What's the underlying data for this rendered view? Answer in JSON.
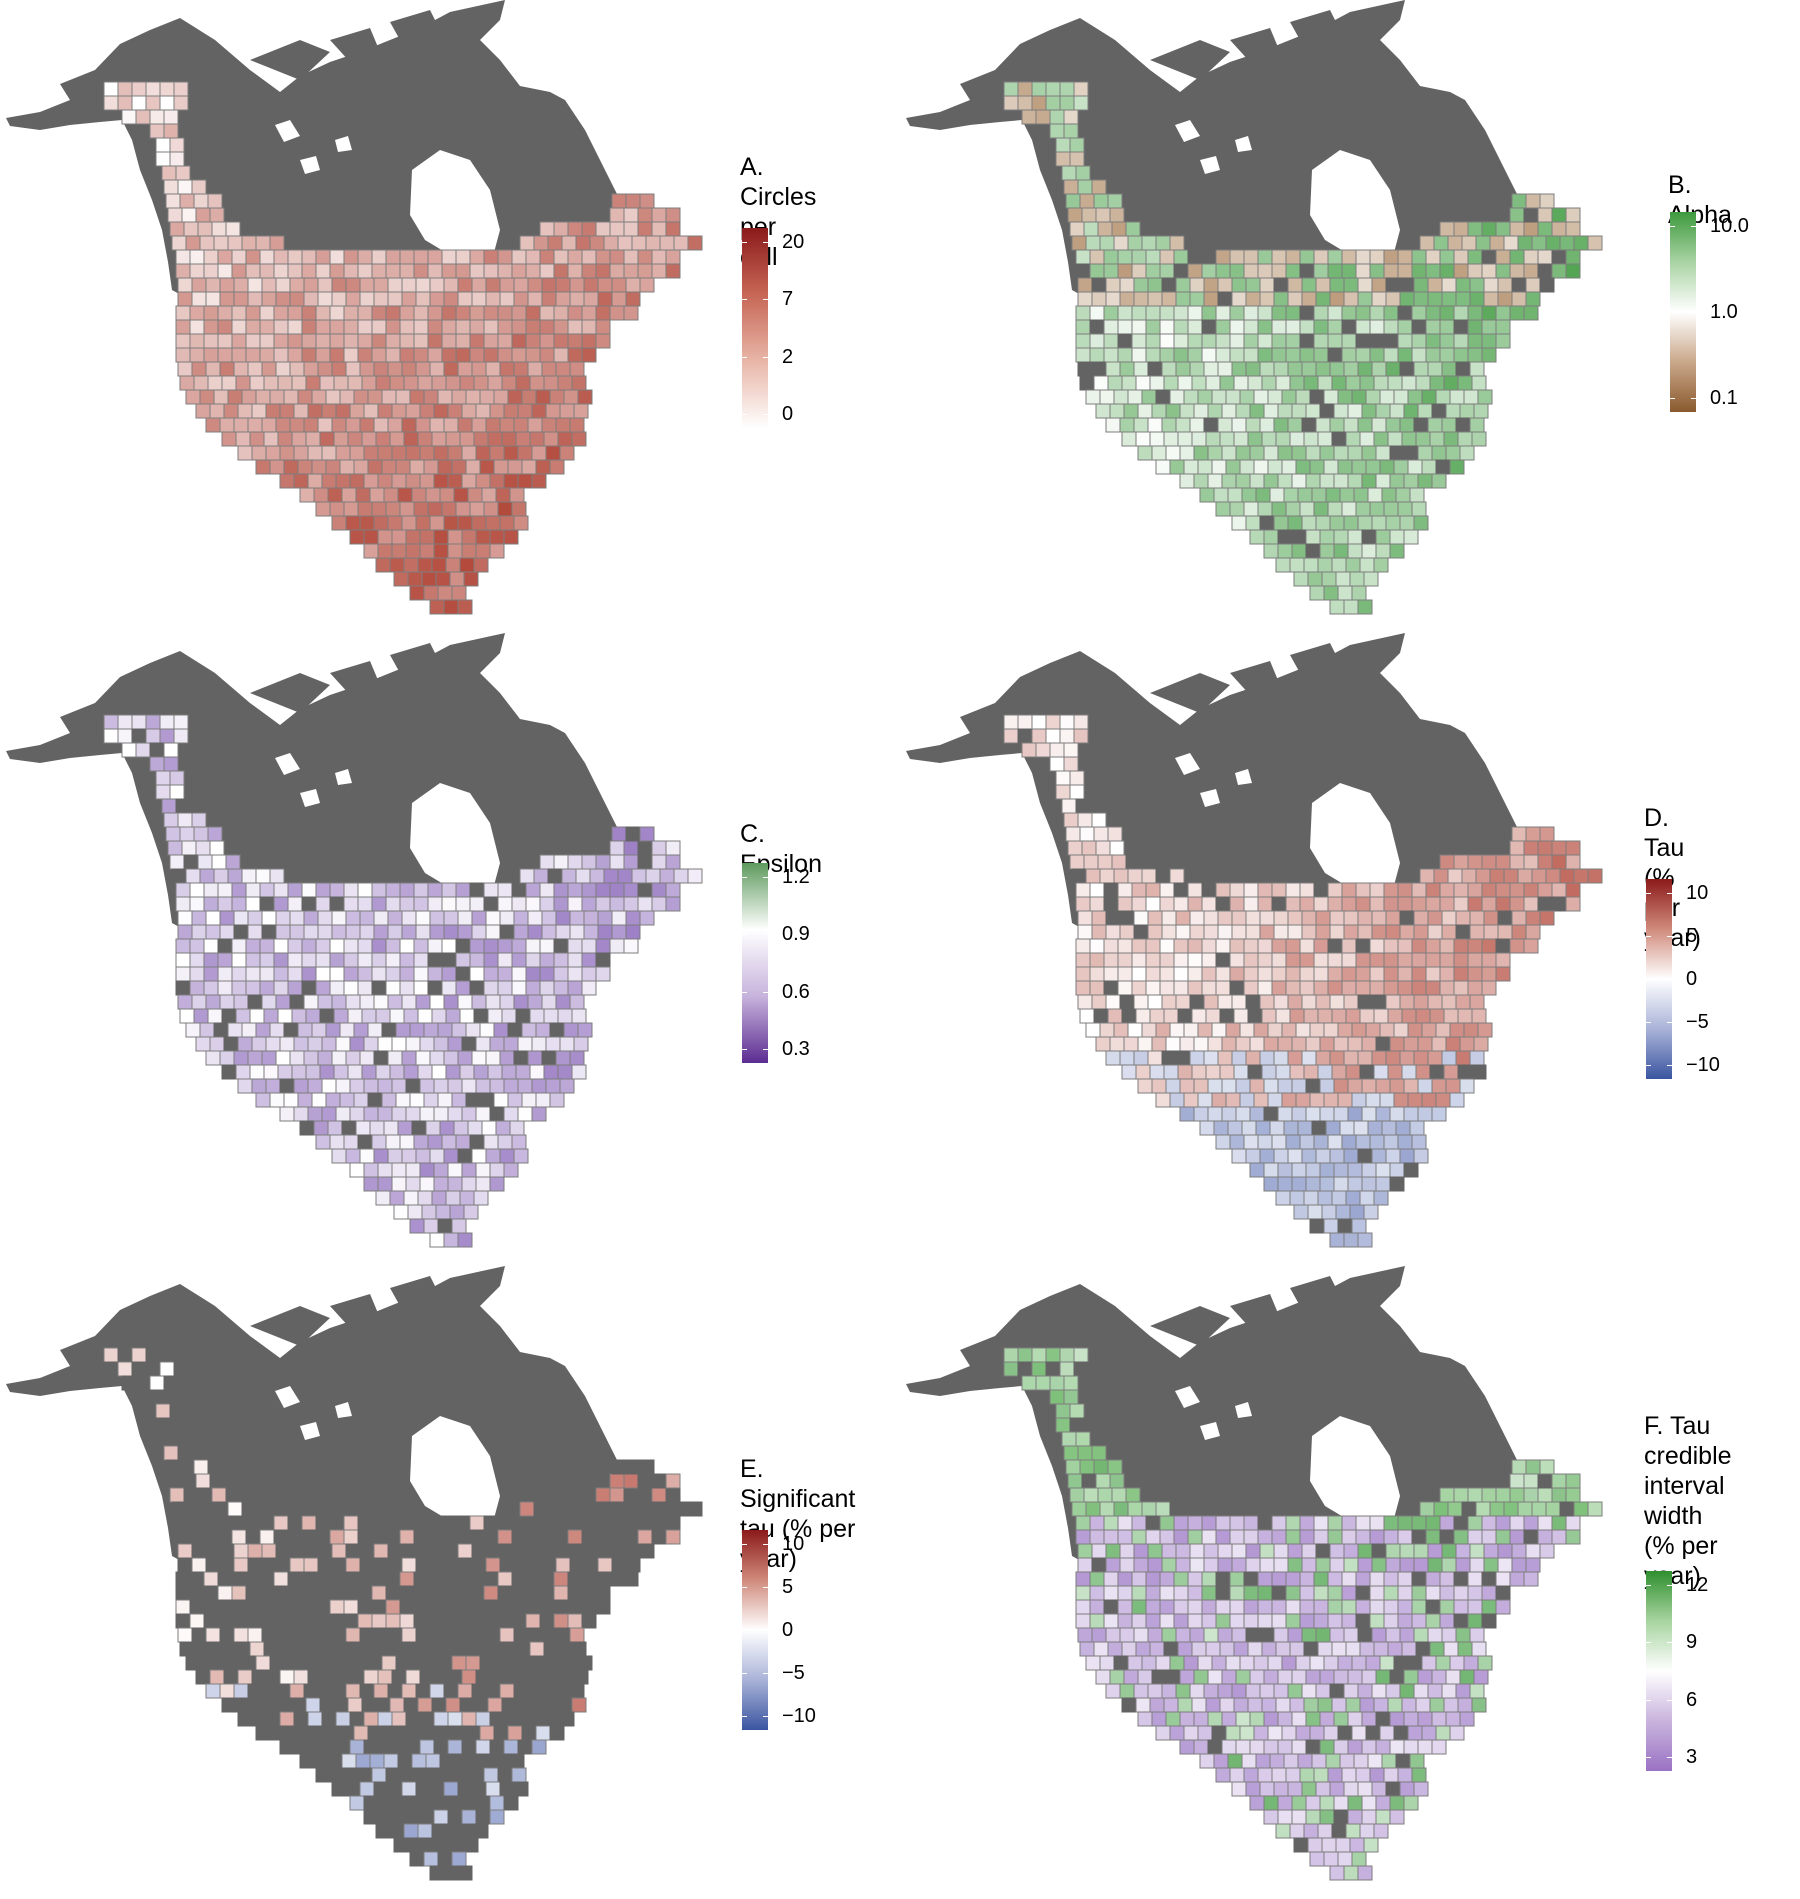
{
  "colors": {
    "land": "#636363",
    "water": "#ffffff",
    "cell_border": "#7d7d7d"
  },
  "panels": [
    {
      "id": "A",
      "legend_title": "A. Circles\nper cell",
      "gradient": [
        "#8b1a1a",
        "#c76756",
        "#e8b6a8",
        "#ffffff"
      ],
      "ticks": [
        "20",
        "7",
        "2",
        "0"
      ],
      "fill_scheme": "red",
      "coverage": "full"
    },
    {
      "id": "B",
      "legend_title": "B. Alpha",
      "gradient": [
        "#3e9a3e",
        "#a9d3a3",
        "#ffffff",
        "#caa88a",
        "#8a5a2e"
      ],
      "ticks": [
        "10.0",
        "1.0",
        "0.1"
      ],
      "fill_scheme": "green-brown",
      "coverage": "gappy"
    },
    {
      "id": "C",
      "legend_title": "C. Epsilon",
      "gradient": [
        "#5e9a5e",
        "#ffffff",
        "#c7b3dc",
        "#5b2d91"
      ],
      "ticks": [
        "1.2",
        "0.9",
        "0.6",
        "0.3"
      ],
      "fill_scheme": "purple",
      "coverage": "gappy"
    },
    {
      "id": "D",
      "legend_title": "D. Tau\n(% per year)",
      "gradient": [
        "#8b1a1a",
        "#d08a7c",
        "#ffffff",
        "#a9b3d8",
        "#3a55a0"
      ],
      "ticks": [
        "10",
        "5",
        "0",
        "−5",
        "−10"
      ],
      "fill_scheme": "red-blue",
      "coverage": "gappy"
    },
    {
      "id": "E",
      "legend_title": "E. Significant\ntau (% per year)",
      "gradient": [
        "#8b1a1a",
        "#d08a7c",
        "#ffffff",
        "#a9b3d8",
        "#3a55a0"
      ],
      "ticks": [
        "10",
        "5",
        "0",
        "−5",
        "−10"
      ],
      "fill_scheme": "red-blue",
      "coverage": "sparse"
    },
    {
      "id": "F",
      "legend_title": "F. Tau\ncredible\ninterval\nwidth\n(% per year)",
      "gradient": [
        "#2f8f2f",
        "#a8d4a0",
        "#ffffff",
        "#c9b4dd",
        "#9a72c4"
      ],
      "ticks": [
        "12",
        "9",
        "6",
        "3"
      ],
      "fill_scheme": "green-purple",
      "coverage": "gappy"
    }
  ]
}
